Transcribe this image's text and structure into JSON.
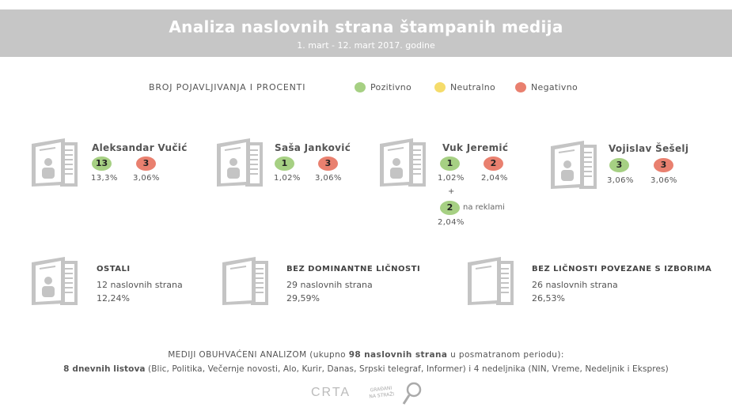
{
  "header": {
    "title": "Analiza naslovnih strana štampanih medija",
    "subtitle": "1. mart - 12. mart 2017. godine"
  },
  "legend": {
    "heading": "BROJ POJAVLJIVANJA I PROCENTI",
    "items": [
      {
        "label": "Pozitivno",
        "color": "#a6d083"
      },
      {
        "label": "Neutralno",
        "color": "#f5dc6b"
      },
      {
        "label": "Negativno",
        "color": "#e9806f"
      }
    ]
  },
  "persons": [
    {
      "name": "Aleksandar Vučić",
      "positive": "13",
      "positive_pct": "13,3%",
      "negative": "3",
      "negative_pct": "3,06%"
    },
    {
      "name": "Saša Janković",
      "positive": "1",
      "positive_pct": "1,02%",
      "negative": "3",
      "negative_pct": "3,06%"
    },
    {
      "name": "Vuk Jeremić",
      "positive": "1",
      "positive_pct": "1,02%",
      "negative": "2",
      "negative_pct": "2,04%",
      "plus": "+",
      "ad_positive": "2",
      "ad_label": "na reklami",
      "ad_pct": "2,04%"
    },
    {
      "name": "Vojislav Šešelj",
      "positive": "3",
      "positive_pct": "3,06%",
      "negative": "3",
      "negative_pct": "3,06%"
    }
  ],
  "others": [
    {
      "title": "OSTALI",
      "count": "12 naslovnih strana",
      "pct": "12,24%"
    },
    {
      "title": "BEZ DOMINANTNE LIČNOSTI",
      "count": "29 naslovnih strana",
      "pct": "29,59%"
    },
    {
      "title": "BEZ LIČNOSTI POVEZANE S IZBORIMA",
      "count": "26 naslovnih strana",
      "pct": "26,53%"
    }
  ],
  "footer": {
    "line1_a": "MEDIJI OBUHVAĆENI ANALIZOM (ukupno ",
    "line1_b": "98 naslovnih strana",
    "line1_c": " u posmatranom periodu):",
    "line2_a": "8 dnevnih listova",
    "line2_b": " (Blic, Politika, Večernje novosti, Alo, Kurir, Danas, Srpski telegraf, Informer) i 4 nedeljnika (NIN, Vreme, Nedeljnik i Ekspres)",
    "logo1": "CRTA",
    "logo2_a": "GRAĐANI",
    "logo2_b": "NA STRAŽI"
  }
}
